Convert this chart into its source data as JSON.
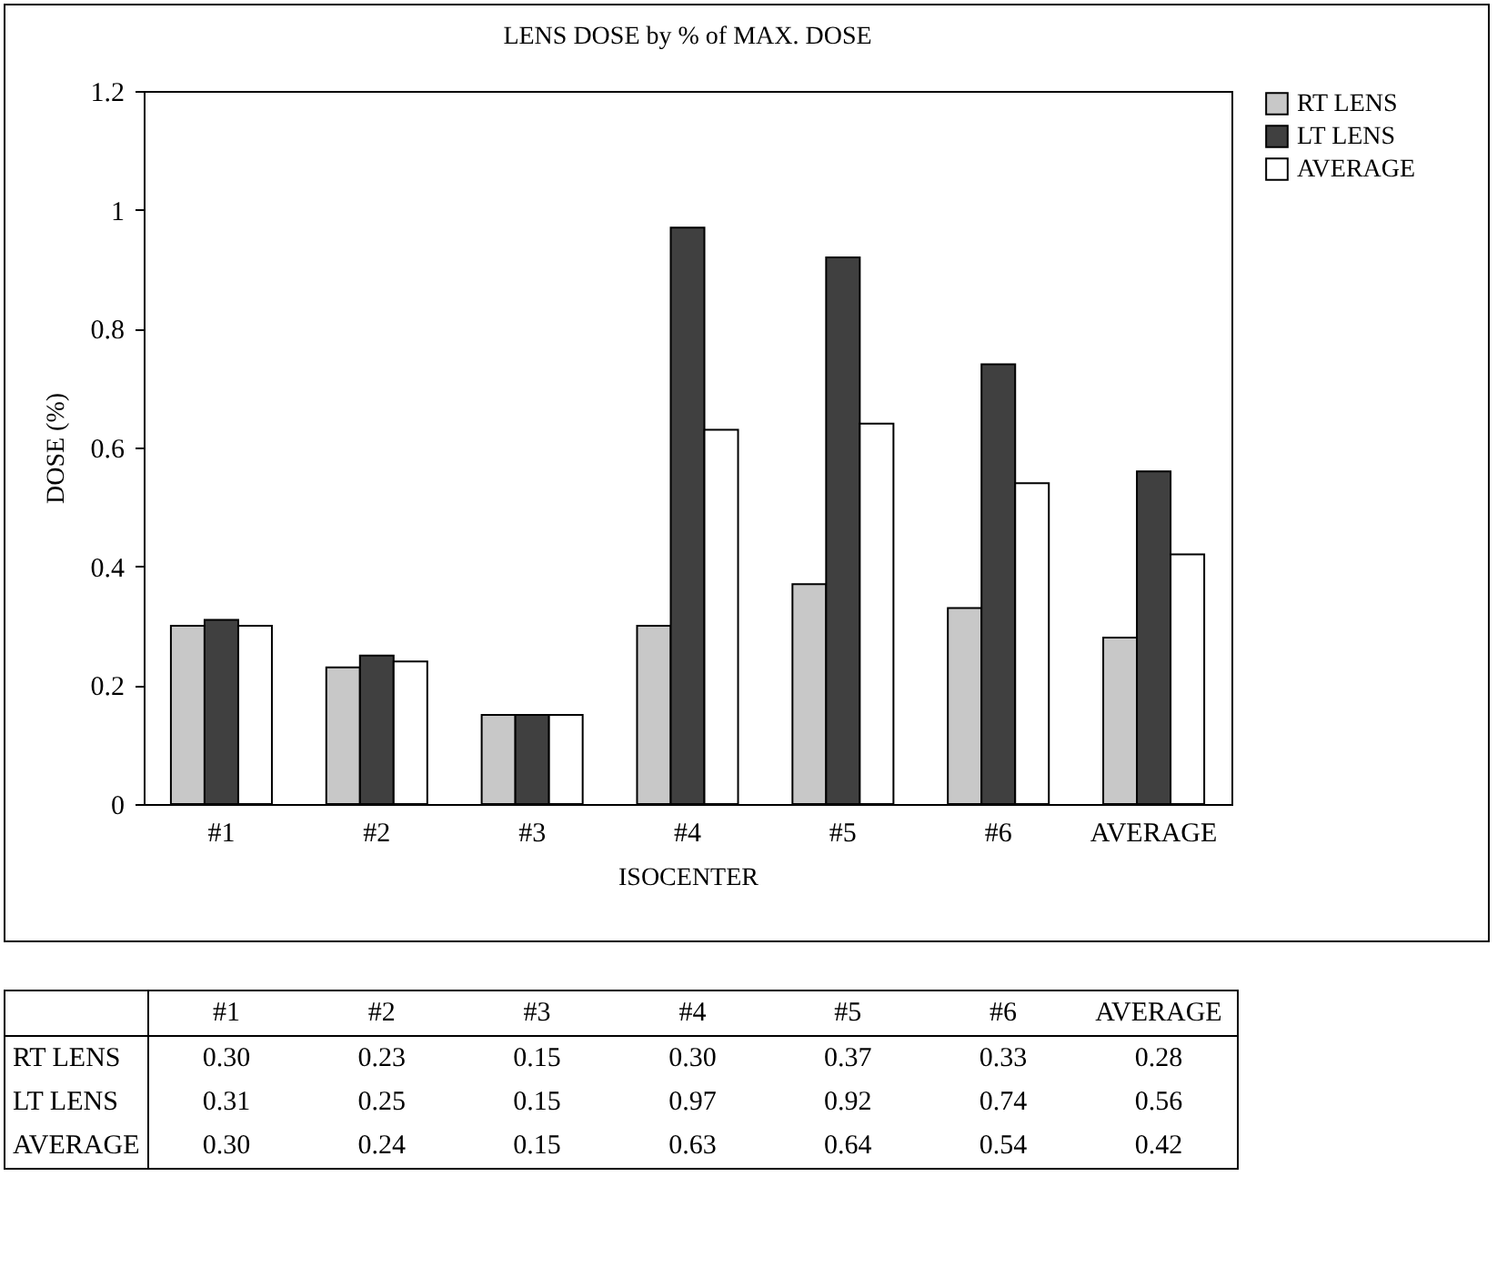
{
  "chart_data": {
    "type": "bar",
    "title": "LENS DOSE by % of MAX. DOSE",
    "xlabel": "ISOCENTER",
    "ylabel": "DOSE (%)",
    "categories": [
      "#1",
      "#2",
      "#3",
      "#4",
      "#5",
      "#6",
      "AVERAGE"
    ],
    "series": [
      {
        "name": "RT LENS",
        "color": "#c8c8c8",
        "values": [
          0.3,
          0.23,
          0.15,
          0.3,
          0.37,
          0.33,
          0.28
        ],
        "value_labels": [
          "0.30",
          "0.23",
          "0.15",
          "0.30",
          "0.37",
          "0.33",
          "0.28"
        ]
      },
      {
        "name": "LT LENS",
        "color": "#404040",
        "values": [
          0.31,
          0.25,
          0.15,
          0.97,
          0.92,
          0.74,
          0.56
        ],
        "value_labels": [
          "0.31",
          "0.25",
          "0.15",
          "0.97",
          "0.92",
          "0.74",
          "0.56"
        ]
      },
      {
        "name": "AVERAGE",
        "color": "#ffffff",
        "values": [
          0.3,
          0.24,
          0.15,
          0.63,
          0.64,
          0.54,
          0.42
        ],
        "value_labels": [
          "0.30",
          "0.24",
          "0.15",
          "0.63",
          "0.64",
          "0.54",
          "0.42"
        ]
      }
    ],
    "ylim": [
      0,
      1.2
    ],
    "yticks": [
      0,
      0.2,
      0.4,
      0.6,
      0.8,
      1,
      1.2
    ],
    "grid": false,
    "legend": "right"
  }
}
